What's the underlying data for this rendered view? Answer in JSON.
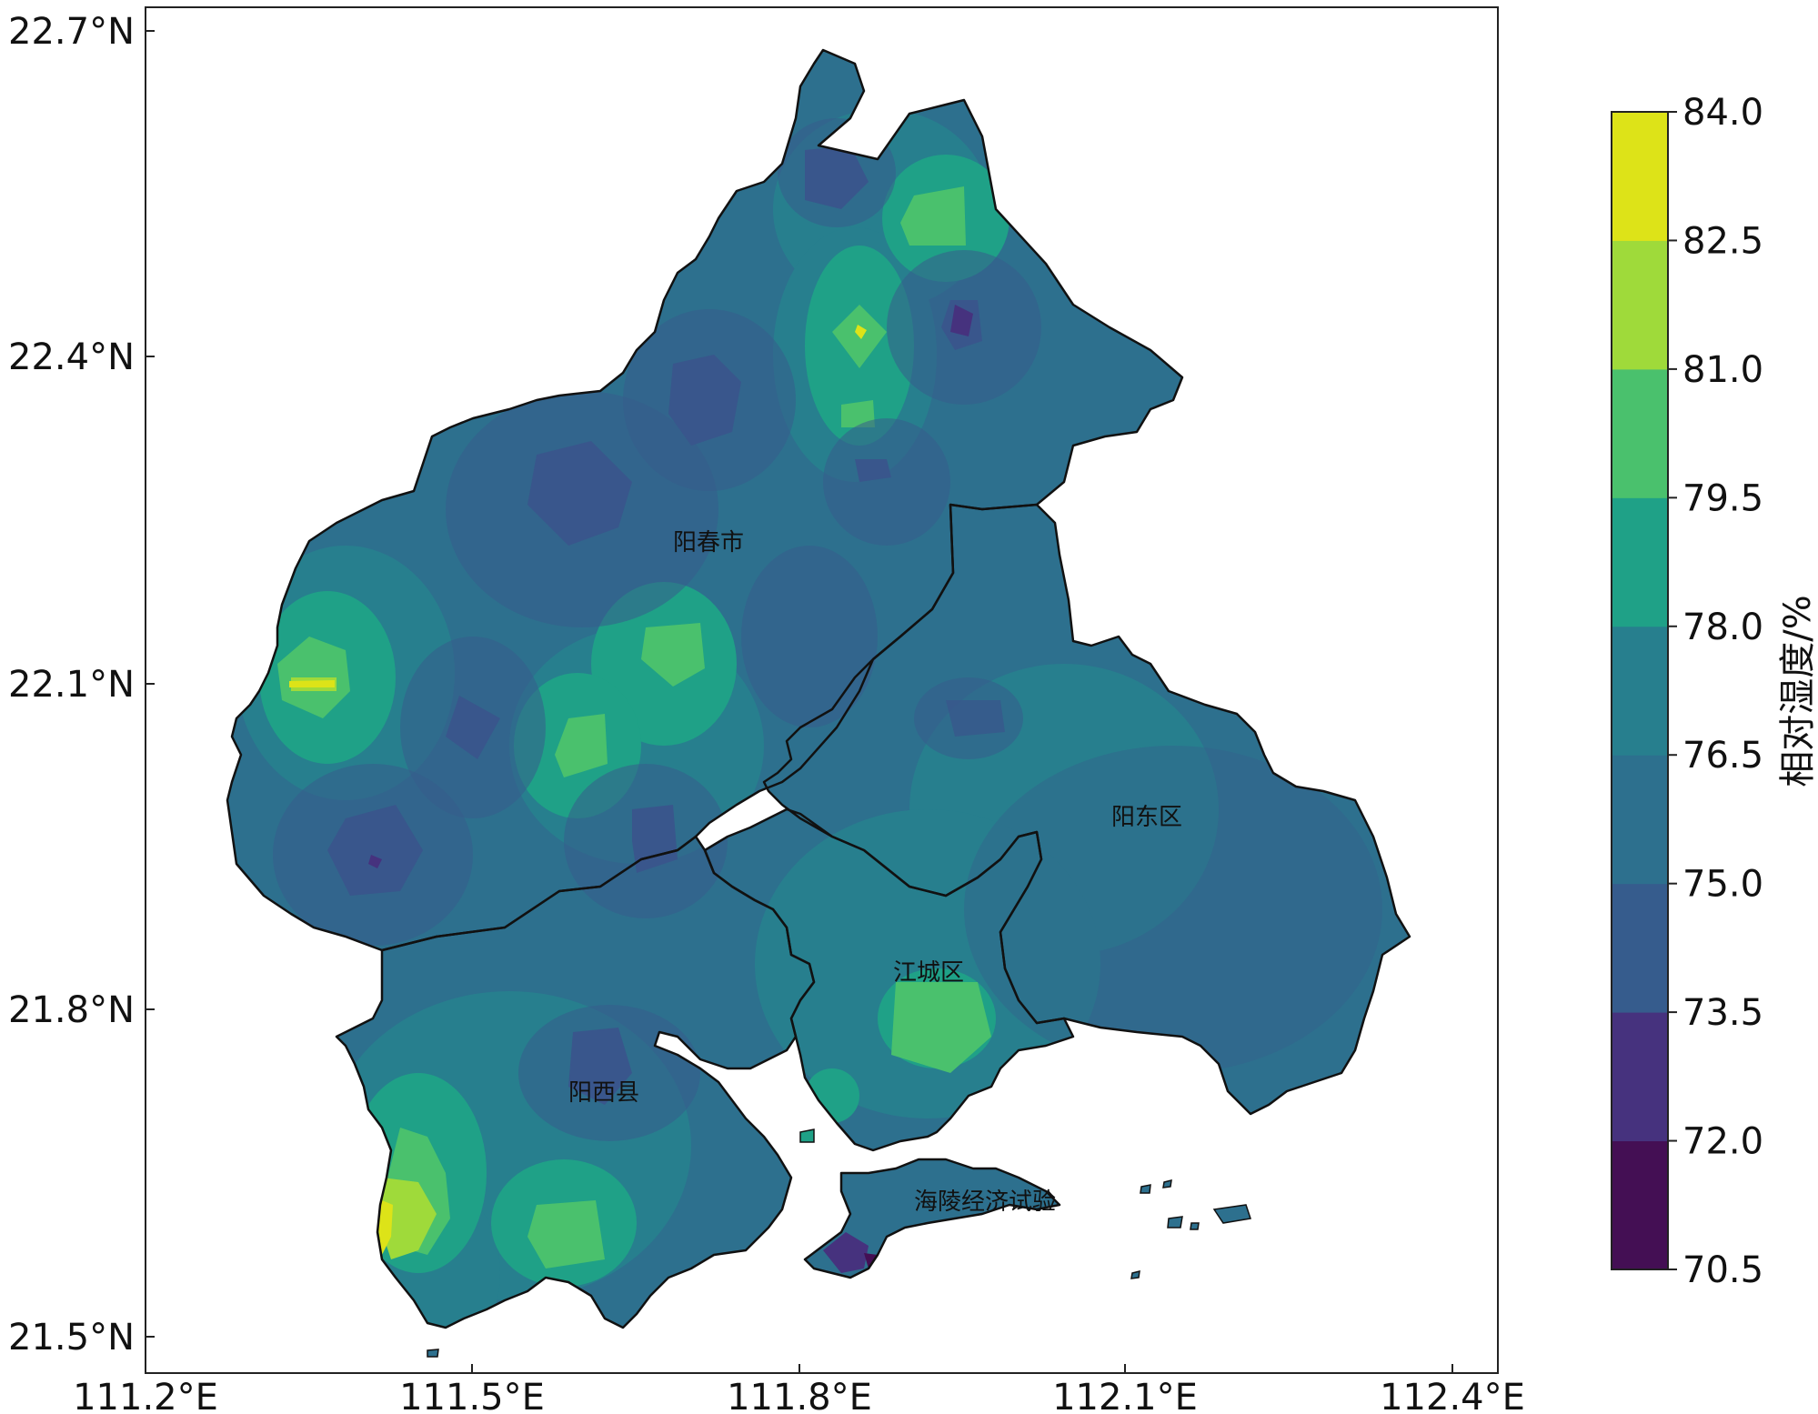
{
  "map": {
    "lon_ticks": [
      "111.2°E",
      "111.5°E",
      "111.8°E",
      "112.1°E",
      "112.4°E"
    ],
    "lat_ticks": [
      "22.7°N",
      "22.4°N",
      "22.1°N",
      "21.8°N",
      "21.5°N"
    ],
    "regions": [
      {
        "key": "yangchun",
        "label": "阳春市"
      },
      {
        "key": "yangdong",
        "label": "阳东区"
      },
      {
        "key": "jiangcheng",
        "label": "江城区"
      },
      {
        "key": "yangxi",
        "label": "阳西县"
      },
      {
        "key": "hailing",
        "label": "海陵经济试验"
      }
    ]
  },
  "colorbar": {
    "label": "相对湿度/%",
    "ticks": [
      "84.0",
      "82.5",
      "81.0",
      "79.5",
      "78.0",
      "76.5",
      "75.0",
      "73.5",
      "72.0",
      "70.5"
    ],
    "colors": [
      "#440f54",
      "#46327e",
      "#365c8d",
      "#2d708e",
      "#277f8e",
      "#1fa187",
      "#4ac16d",
      "#9fda3a",
      "#dde318"
    ]
  }
}
